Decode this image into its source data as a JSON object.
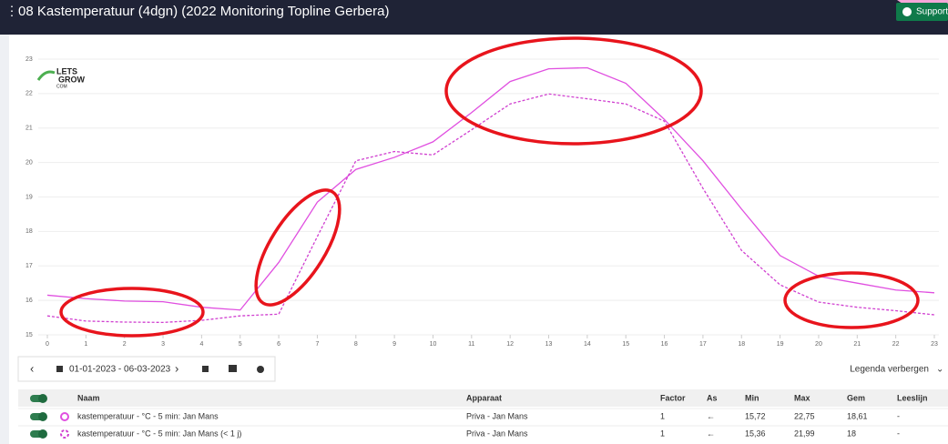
{
  "header": {
    "title": "08 Kastemperatuur (4dgn) (2022 Monitoring Topline Gerbera)",
    "support": "Support"
  },
  "logo": [
    "LETS",
    "GROW",
    "COM"
  ],
  "chart_data": {
    "type": "line",
    "x": [
      0,
      1,
      2,
      3,
      4,
      5,
      6,
      7,
      8,
      9,
      10,
      11,
      12,
      13,
      14,
      15,
      16,
      17,
      18,
      19,
      20,
      21,
      22,
      23
    ],
    "series": [
      {
        "name": "kastemperatuur - °C - 5 min: Jan Mans",
        "color": "#e04fe0",
        "dash": false,
        "values": [
          16.15,
          16.05,
          15.98,
          15.96,
          15.8,
          15.72,
          17.1,
          18.85,
          19.8,
          20.15,
          20.6,
          21.45,
          22.35,
          22.72,
          22.75,
          22.3,
          21.25,
          20.05,
          18.65,
          17.3,
          16.7,
          16.5,
          16.3,
          16.22
        ]
      },
      {
        "name": "kastemperatuur - °C - 5 min: Jan Mans (< 1 j)",
        "color": "#d040d0",
        "dash": true,
        "values": [
          15.55,
          15.4,
          15.37,
          15.36,
          15.42,
          15.55,
          15.6,
          17.85,
          20.05,
          20.32,
          20.22,
          20.95,
          21.7,
          21.99,
          21.85,
          21.7,
          21.2,
          19.25,
          17.45,
          16.45,
          15.95,
          15.8,
          15.7,
          15.58
        ]
      }
    ],
    "xlim": [
      0,
      23
    ],
    "xticks": [
      0,
      1,
      2,
      3,
      4,
      5,
      6,
      7,
      8,
      9,
      10,
      11,
      12,
      13,
      14,
      15,
      16,
      17,
      18,
      19,
      20,
      21,
      22,
      23
    ],
    "ylim": [
      15,
      23
    ],
    "yticks": [
      15,
      16,
      17,
      18,
      19,
      20,
      21,
      22,
      23
    ],
    "grid": true
  },
  "toolbar": {
    "date_range": "01-01-2023 - 06-03-2023",
    "legend_toggle": "Legenda verbergen"
  },
  "legend_table": {
    "headers": [
      "Naam",
      "Apparaat",
      "Factor",
      "As",
      "Min",
      "Max",
      "Gem",
      "Leeslijn"
    ],
    "rows": [
      [
        "Priva - Jan Mans",
        "1",
        "←",
        "15,72",
        "22,75",
        "18,61",
        "-"
      ],
      [
        "Priva - Jan Mans",
        "1",
        "←",
        "15,36",
        "21,99",
        "18",
        "-"
      ]
    ]
  }
}
